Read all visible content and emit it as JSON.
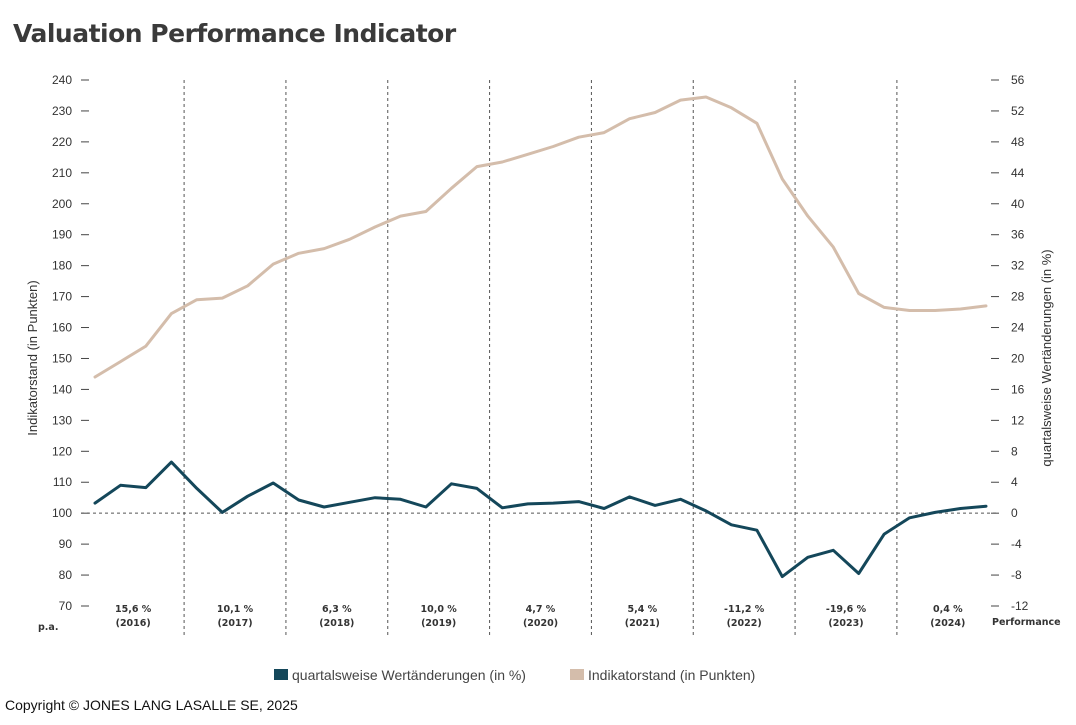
{
  "title": "Valuation Performance Indicator",
  "copyright": "Copyright © JONES LANG LASALLE SE, 2025",
  "colors": {
    "quarterly": "#14475a",
    "indicator": "#d4bdab",
    "axis_text": "#333333",
    "divider": "#555555"
  },
  "chart_data": {
    "type": "line",
    "title": "Valuation Performance Indicator",
    "ylabel_left": "Indikatorstand (in Punkten)",
    "ylabel_right": "quartalsweise Wertänderungen (in %)",
    "ylim_left": [
      70,
      240
    ],
    "ylim_right": [
      -12,
      56
    ],
    "yticks_left": [
      "240",
      "230",
      "220",
      "210",
      "200",
      "190",
      "180",
      "170",
      "160",
      "150",
      "140",
      "130",
      "120",
      "110",
      "100",
      "90",
      "80",
      "70"
    ],
    "yticks_right": [
      "56",
      "52",
      "48",
      "44",
      "40",
      "36",
      "32",
      "28",
      "24",
      "20",
      "16",
      "12",
      "8",
      "4",
      "0",
      "-4",
      "-8",
      "-12"
    ],
    "baseline_right": 0,
    "x": [
      "2016 Q1",
      "2016 Q2",
      "2016 Q3",
      "2016 Q4",
      "2017 Q1",
      "2017 Q2",
      "2017 Q3",
      "2017 Q4",
      "2018 Q1",
      "2018 Q2",
      "2018 Q3",
      "2018 Q4",
      "2019 Q1",
      "2019 Q2",
      "2019 Q3",
      "2019 Q4",
      "2020 Q1",
      "2020 Q2",
      "2020 Q3",
      "2020 Q4",
      "2021 Q1",
      "2021 Q2",
      "2021 Q3",
      "2021 Q4",
      "2022 Q1",
      "2022 Q2",
      "2022 Q3",
      "2022 Q4",
      "2023 Q1",
      "2023 Q2",
      "2023 Q3",
      "2023 Q4",
      "2024 Q1",
      "2024 Q2",
      "2024 Q3",
      "2024 Q4"
    ],
    "series": [
      {
        "name": "quartalsweise Wertänderungen (in %)",
        "axis": "right",
        "color": "#14475a",
        "values": [
          1.3,
          3.6,
          3.3,
          6.6,
          3.2,
          0.1,
          2.2,
          3.9,
          1.7,
          0.8,
          1.4,
          2.0,
          1.8,
          0.8,
          3.8,
          3.2,
          0.7,
          1.2,
          1.3,
          1.5,
          0.6,
          2.1,
          1.0,
          1.8,
          0.3,
          -1.5,
          -2.2,
          -8.2,
          -5.7,
          -4.8,
          -7.8,
          -2.7,
          -0.6,
          0.1,
          0.6,
          0.9
        ]
      },
      {
        "name": "Indikatorstand (in Punkten)",
        "axis": "left",
        "color": "#d4bdab",
        "values": [
          144,
          149,
          154,
          164.5,
          169,
          169.5,
          173.5,
          180.5,
          184,
          185.5,
          188.5,
          192.5,
          196,
          197.5,
          205,
          212,
          213.5,
          216,
          218.5,
          221.5,
          223,
          227.5,
          229.5,
          233.5,
          234.5,
          231,
          226,
          208,
          196,
          186,
          171,
          166.5,
          165.5,
          165.5,
          166,
          167
        ]
      }
    ],
    "year_labels": [
      {
        "pct": "15,6 %",
        "year": "(2016)"
      },
      {
        "pct": "10,1 %",
        "year": "(2017)"
      },
      {
        "pct": "6,3 %",
        "year": "(2018)"
      },
      {
        "pct": "10,0 %",
        "year": "(2019)"
      },
      {
        "pct": "4,7 %",
        "year": "(2020)"
      },
      {
        "pct": "5,4 %",
        "year": "(2021)"
      },
      {
        "pct": "-11,2 %",
        "year": "(2022)"
      },
      {
        "pct": "-19,6 %",
        "year": "(2023)"
      },
      {
        "pct": "0,4 %",
        "year": "(2024)"
      }
    ],
    "pa_label": "p.a.",
    "performance_label": "Performance",
    "legend": [
      {
        "label": "quartalsweise Wertänderungen (in %)",
        "color": "#14475a"
      },
      {
        "label": "Indikatorstand (in Punkten)",
        "color": "#d4bdab"
      }
    ],
    "grid": false,
    "legend_position": "bottom-center"
  }
}
